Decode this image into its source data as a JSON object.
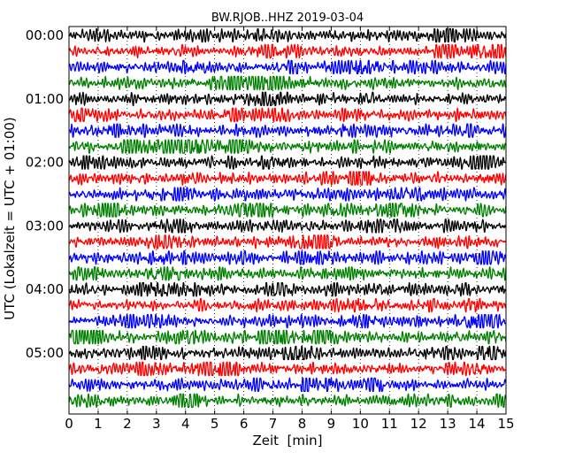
{
  "chart_data": {
    "type": "line",
    "title": "BW.RJOB..HHZ 2019-03-04",
    "xlabel": "Zeit  [min]",
    "ylabel": "UTC (Lokalzeit = UTC + 01:00)",
    "xlim": [
      0,
      15
    ],
    "x_ticks": [
      "0",
      "1",
      "2",
      "3",
      "4",
      "5",
      "6",
      "7",
      "8",
      "9",
      "10",
      "11",
      "12",
      "13",
      "14",
      "15"
    ],
    "y_ticks": [
      "00:00",
      "01:00",
      "02:00",
      "03:00",
      "04:00",
      "05:00"
    ],
    "y_tick_rows": [
      0,
      4,
      8,
      12,
      16,
      20
    ],
    "row_minutes": 15,
    "row_count": 24,
    "row_colors": [
      "#000000",
      "#ff0000",
      "#0000ff",
      "#008000"
    ],
    "grid": "vertical-dotted"
  }
}
